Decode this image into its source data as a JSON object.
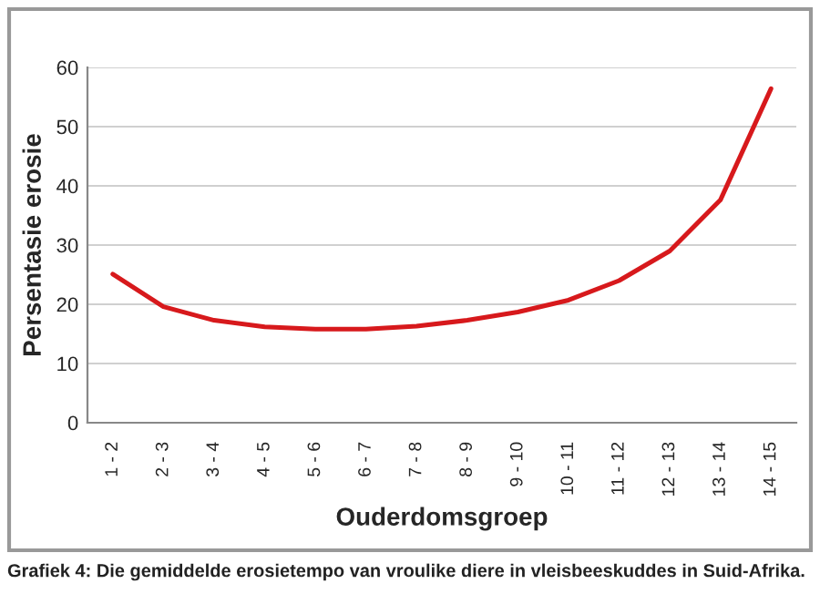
{
  "chart_data": {
    "type": "line",
    "xlabel": "Ouderdomsgroep",
    "ylabel": "Persentasie erosie",
    "categories": [
      "1 - 2",
      "2 - 3",
      "3 - 4",
      "4 - 5",
      "5 - 6",
      "6 - 7",
      "7 - 8",
      "8 - 9",
      "9 - 10",
      "10 - 11",
      "11 - 12",
      "12 - 13",
      "13 - 14",
      "14 - 15"
    ],
    "series": [
      {
        "color": "#d7191c",
        "values": [
          25.1,
          19.6,
          17.3,
          16.2,
          15.8,
          15.8,
          16.3,
          17.3,
          18.7,
          20.7,
          24.0,
          29.0,
          37.6,
          56.4
        ]
      }
    ],
    "ylim": [
      0,
      60
    ],
    "yticks": [
      0,
      10,
      20,
      30,
      40,
      50,
      60
    ],
    "grid": "y",
    "legend": false,
    "marker": "none",
    "line_style": "solid",
    "annotations": [
      "Grafiek 4: Die gemiddelde erosietempo van vroulike diere in vleisbeeskuddes in Suid-Afrika."
    ]
  }
}
